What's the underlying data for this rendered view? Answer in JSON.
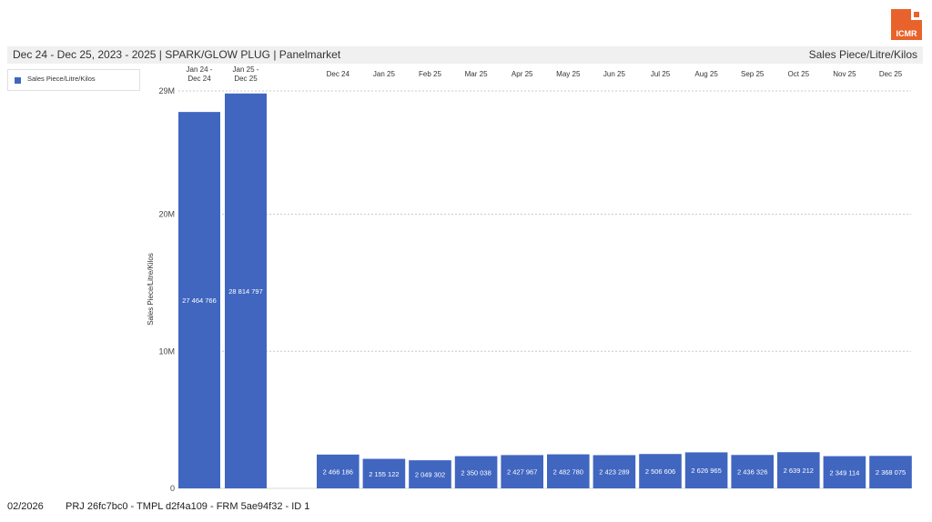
{
  "brand": {
    "logo_text": "ICMR",
    "accent": "#e8632b"
  },
  "header": {
    "title": "Dec 24 - Dec 25, 2023 - 2025 | SPARK/GLOW PLUG | Panelmarket",
    "right_label": "Sales Piece/Litre/Kilos"
  },
  "legend": {
    "label": "Sales Piece/Litre/Kilos",
    "color": "#4066c0"
  },
  "footer": {
    "date": "02/2026",
    "ids": "PRJ 26fc7bc0 - TMPL d2f4a109 - FRM 5ae94f32 - ID 1"
  },
  "chart_data": {
    "type": "bar",
    "title": "",
    "xlabel": "",
    "ylabel": "Sales Piece/Litre/Kilos",
    "ylim": [
      0,
      29000000
    ],
    "yticks": [
      0,
      10000000,
      20000000,
      29000000
    ],
    "ytick_labels": [
      "0",
      "10M",
      "20M",
      "29M"
    ],
    "grid": true,
    "legend_position": "top-left",
    "bar_color": "#4066c0",
    "groups": [
      {
        "categories": [
          "Jan 24 -\nDec 24",
          "Jan 25 -\nDec 25"
        ],
        "values": [
          27464766,
          28814797
        ],
        "value_labels": [
          "27 464 766",
          "28 814 797"
        ]
      },
      {
        "categories": [
          "Dec 24",
          "Jan 25",
          "Feb 25",
          "Mar 25",
          "Apr 25",
          "May 25",
          "Jun 25",
          "Jul 25",
          "Aug 25",
          "Sep 25",
          "Oct 25",
          "Nov 25",
          "Dec 25"
        ],
        "values": [
          2466186,
          2155122,
          2049302,
          2350038,
          2427967,
          2482780,
          2423289,
          2506606,
          2626965,
          2436326,
          2639212,
          2349114,
          2368075
        ],
        "value_labels": [
          "2 466 186",
          "2 155 122",
          "2 049 302",
          "2 350 038",
          "2 427 967",
          "2 482 780",
          "2 423 289",
          "2 506 606",
          "2 626 965",
          "2 436 326",
          "2 639 212",
          "2 349 114",
          "2 368 075"
        ]
      }
    ]
  }
}
